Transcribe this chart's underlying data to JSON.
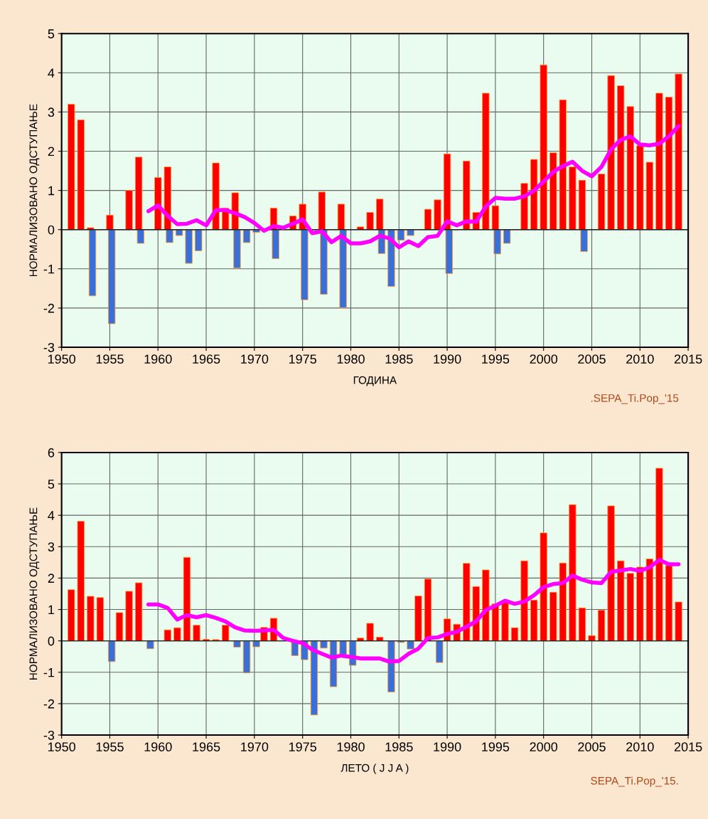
{
  "chart_data": [
    {
      "type": "bar",
      "xlabel": "ГОДИНА",
      "ylabel": "НОРМАЛИЗОВАНО ОДСТУПАЊЕ",
      "annotations": [
        ".SEPA_Ti.Pop_'15"
      ],
      "xlim": [
        1950,
        2015
      ],
      "xticks": [
        1950,
        1955,
        1960,
        1965,
        1970,
        1975,
        1980,
        1985,
        1990,
        1995,
        2000,
        2005,
        2010,
        2015
      ],
      "ylim": [
        -3,
        5
      ],
      "yticks": [
        -3,
        -2,
        -1,
        0,
        1,
        2,
        3,
        4,
        5
      ],
      "grid": true,
      "series": [
        {
          "color": "#ff0000",
          "x": [
            1951,
            1952,
            1953,
            1955,
            1957,
            1958,
            1960,
            1961,
            1966,
            1967,
            1968,
            1972,
            1974,
            1975,
            1977,
            1979,
            1981,
            1982,
            1983,
            1988,
            1989,
            1990,
            1992,
            1993,
            1994,
            1995,
            1998,
            1999,
            2000,
            2001,
            2002,
            2003,
            2004,
            2006,
            2007,
            2008,
            2009,
            2010,
            2011,
            2012,
            2013,
            2014
          ],
          "values": [
            3.2,
            2.8,
            0.05,
            0.37,
            1.0,
            1.85,
            1.33,
            1.6,
            1.7,
            0.55,
            0.94,
            0.55,
            0.35,
            0.65,
            0.96,
            0.65,
            0.07,
            0.44,
            0.78,
            0.52,
            0.76,
            1.93,
            1.75,
            0.44,
            3.48,
            0.61,
            1.18,
            1.79,
            4.2,
            1.96,
            3.31,
            1.6,
            1.26,
            1.42,
            3.93,
            3.67,
            3.14,
            2.14,
            1.72,
            3.48,
            3.38,
            3.97
          ]
        },
        {
          "color": "#3a6fd8",
          "x": [
            1953,
            1955,
            1958,
            1961,
            1962,
            1963,
            1964,
            1968,
            1969,
            1970,
            1972,
            1975,
            1977,
            1979,
            1983,
            1984,
            1985,
            1986,
            1990,
            1995,
            1996,
            2004
          ],
          "values": [
            -1.69,
            -2.4,
            -0.35,
            -0.33,
            -0.15,
            -0.86,
            -0.54,
            -0.98,
            -0.33,
            -0.07,
            -0.74,
            -1.79,
            -1.65,
            -1.99,
            -0.61,
            -1.45,
            -0.27,
            -0.15,
            -1.12,
            -0.62,
            -0.35,
            -0.56
          ]
        },
        {
          "type": "line",
          "color": "#ff00ff",
          "x": [
            1959,
            1960,
            1961,
            1962,
            1963,
            1964,
            1965,
            1966,
            1967,
            1968,
            1969,
            1970,
            1971,
            1972,
            1973,
            1974,
            1975,
            1976,
            1977,
            1978,
            1979,
            1980,
            1981,
            1982,
            1983,
            1984,
            1985,
            1986,
            1987,
            1988,
            1989,
            1990,
            1991,
            1992,
            1993,
            1994,
            1995,
            1996,
            1997,
            1998,
            1999,
            2000,
            2001,
            2002,
            2003,
            2004,
            2005,
            2006,
            2007,
            2008,
            2009,
            2010,
            2011,
            2012,
            2013,
            2014
          ],
          "values": [
            0.47,
            0.62,
            0.35,
            0.14,
            0.15,
            0.24,
            0.11,
            0.5,
            0.5,
            0.42,
            0.32,
            0.17,
            -0.03,
            0.09,
            0.05,
            0.15,
            0.26,
            -0.09,
            -0.04,
            -0.32,
            -0.16,
            -0.35,
            -0.35,
            -0.3,
            -0.16,
            -0.22,
            -0.45,
            -0.3,
            -0.42,
            -0.19,
            -0.16,
            0.21,
            0.11,
            0.21,
            0.2,
            0.59,
            0.81,
            0.79,
            0.79,
            0.85,
            0.99,
            1.23,
            1.47,
            1.62,
            1.73,
            1.5,
            1.36,
            1.6,
            2.05,
            2.29,
            2.38,
            2.17,
            2.15,
            2.19,
            2.38,
            2.64
          ]
        }
      ]
    },
    {
      "type": "bar",
      "xlabel": "ЛЕТО ( J J A )",
      "ylabel": "НОРМАЛИЗОВАНО ОДСТУПАЊЕ",
      "annotations": [
        "SEPA_Ti.Pop_'15."
      ],
      "xlim": [
        1950,
        2015
      ],
      "xticks": [
        1950,
        1955,
        1960,
        1965,
        1970,
        1975,
        1980,
        1985,
        1990,
        1995,
        2000,
        2005,
        2010,
        2015
      ],
      "ylim": [
        -3,
        6
      ],
      "yticks": [
        -3,
        -2,
        -1,
        0,
        1,
        2,
        3,
        4,
        5,
        6
      ],
      "grid": true,
      "series": [
        {
          "color": "#ff0000",
          "x": [
            1951,
            1952,
            1953,
            1954,
            1956,
            1957,
            1958,
            1961,
            1962,
            1963,
            1964,
            1965,
            1966,
            1967,
            1971,
            1972,
            1981,
            1982,
            1983,
            1987,
            1988,
            1990,
            1991,
            1992,
            1993,
            1994,
            1995,
            1996,
            1997,
            1998,
            1999,
            2000,
            2001,
            2002,
            2003,
            2004,
            2005,
            2006,
            2007,
            2008,
            2009,
            2010,
            2011,
            2012,
            2013,
            2014
          ],
          "values": [
            1.63,
            3.81,
            1.42,
            1.38,
            0.9,
            1.58,
            1.85,
            0.35,
            0.42,
            2.66,
            0.5,
            0.05,
            0.04,
            0.5,
            0.43,
            0.72,
            0.09,
            0.56,
            0.12,
            1.43,
            1.97,
            0.7,
            0.53,
            2.47,
            1.73,
            2.26,
            1.18,
            1.25,
            0.42,
            2.55,
            1.3,
            3.44,
            1.55,
            2.48,
            4.34,
            1.05,
            0.17,
            0.98,
            4.3,
            2.55,
            2.15,
            2.35,
            2.61,
            5.5,
            2.4,
            1.24
          ]
        },
        {
          "color": "#3a6fd8",
          "x": [
            1955,
            1959,
            1968,
            1969,
            1970,
            1974,
            1975,
            1976,
            1977,
            1978,
            1979,
            1980,
            1984,
            1985,
            1986,
            1989
          ],
          "values": [
            -0.66,
            -0.25,
            -0.2,
            -1.02,
            -0.19,
            -0.47,
            -0.6,
            -2.36,
            -0.23,
            -1.46,
            -0.45,
            -0.78,
            -1.63,
            -0.05,
            -0.26,
            -0.69
          ]
        },
        {
          "type": "line",
          "color": "#ff00ff",
          "x": [
            1959,
            1960,
            1961,
            1962,
            1963,
            1964,
            1965,
            1966,
            1967,
            1968,
            1969,
            1970,
            1971,
            1972,
            1973,
            1974,
            1975,
            1976,
            1977,
            1978,
            1979,
            1980,
            1981,
            1982,
            1983,
            1984,
            1985,
            1986,
            1987,
            1988,
            1989,
            1990,
            1991,
            1992,
            1993,
            1994,
            1995,
            1996,
            1997,
            1998,
            1999,
            2000,
            2001,
            2002,
            2003,
            2004,
            2005,
            2006,
            2007,
            2008,
            2009,
            2010,
            2011,
            2012,
            2013,
            2014
          ],
          "values": [
            1.16,
            1.16,
            1.05,
            0.68,
            0.82,
            0.75,
            0.82,
            0.73,
            0.62,
            0.43,
            0.33,
            0.32,
            0.33,
            0.35,
            0.09,
            0.0,
            -0.07,
            -0.28,
            -0.41,
            -0.53,
            -0.47,
            -0.51,
            -0.56,
            -0.56,
            -0.56,
            -0.66,
            -0.64,
            -0.41,
            -0.25,
            0.09,
            0.11,
            0.22,
            0.29,
            0.45,
            0.62,
            0.98,
            1.12,
            1.28,
            1.18,
            1.25,
            1.45,
            1.71,
            1.81,
            1.84,
            2.08,
            1.95,
            1.86,
            1.84,
            2.2,
            2.24,
            2.29,
            2.23,
            2.34,
            2.58,
            2.44,
            2.44
          ]
        }
      ]
    }
  ]
}
